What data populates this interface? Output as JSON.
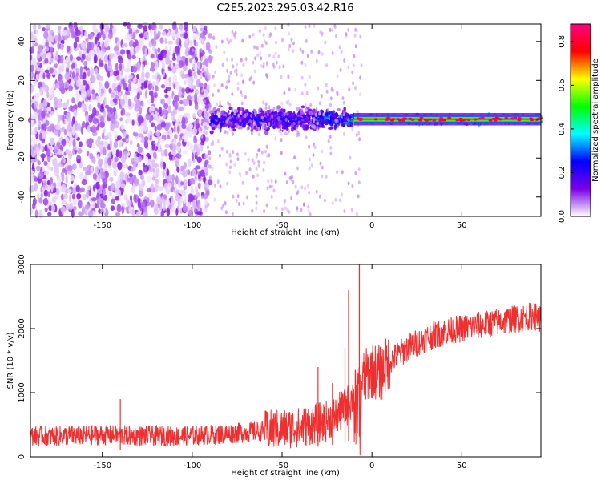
{
  "figure": {
    "title": "C2E5.2023.295.03.42.R16"
  },
  "chart_data": [
    {
      "type": "heatmap",
      "xlabel": "Height of straight line (km)",
      "ylabel": "Frequency (Hz)",
      "xlim": [
        -190,
        94
      ],
      "ylim": [
        -50,
        49
      ],
      "x_ticks": [
        -150,
        -100,
        -50,
        0,
        50
      ],
      "y_ticks": [
        -40,
        -20,
        0,
        20,
        40
      ],
      "colorbar": {
        "label": "Normalized spectral amplitude",
        "range": [
          0,
          0.88
        ],
        "ticks": [
          0.0,
          0.2,
          0.4,
          0.6,
          0.8
        ],
        "colormap": [
          "#ffffff",
          "#7a00e6",
          "#0000ff",
          "#00ffff",
          "#00ff00",
          "#ffff00",
          "#ff0000",
          "#ff0080"
        ]
      },
      "bands": [
        {
          "x_from": -190,
          "x_to": -90,
          "freq_span": 49,
          "amplitude": 0.08
        },
        {
          "x_from": -90,
          "x_to": -30,
          "freq_span": 8,
          "amplitude": 0.2
        },
        {
          "x_from": -30,
          "x_to": -10,
          "freq_span": 6,
          "amplitude": 0.3
        },
        {
          "x_from": -10,
          "x_to": 94,
          "freq_span": 3,
          "amplitude": 0.7
        }
      ]
    },
    {
      "type": "line",
      "xlabel": "Height of straight line (km)",
      "ylabel": "SNR (10 * v/v)",
      "xlim": [
        -190,
        94
      ],
      "ylim": [
        0,
        3000
      ],
      "x_ticks": [
        -150,
        -100,
        -50,
        0,
        50
      ],
      "y_ticks": [
        0,
        1000,
        2000,
        3000
      ],
      "color": "#f03030",
      "series": [
        {
          "x": [
            -190,
            -170,
            -150,
            -130,
            -110,
            -90,
            -70,
            -55,
            -40,
            -25,
            -15,
            -10,
            -7,
            -5,
            0,
            5,
            10,
            20,
            30,
            40,
            50,
            60,
            70,
            80,
            90,
            94
          ],
          "y": [
            320,
            330,
            340,
            330,
            320,
            340,
            380,
            420,
            460,
            560,
            750,
            950,
            1050,
            1200,
            1350,
            1300,
            1500,
            1700,
            1850,
            1950,
            2000,
            2050,
            2100,
            2150,
            2200,
            2150
          ]
        }
      ],
      "spikes": [
        {
          "x": -140,
          "y": 900
        },
        {
          "x": -30,
          "y": 1400
        },
        {
          "x": -22,
          "y": 1150
        },
        {
          "x": -15,
          "y": 1700
        },
        {
          "x": -13,
          "y": 2600
        },
        {
          "x": -7,
          "y": 3000
        }
      ]
    }
  ]
}
